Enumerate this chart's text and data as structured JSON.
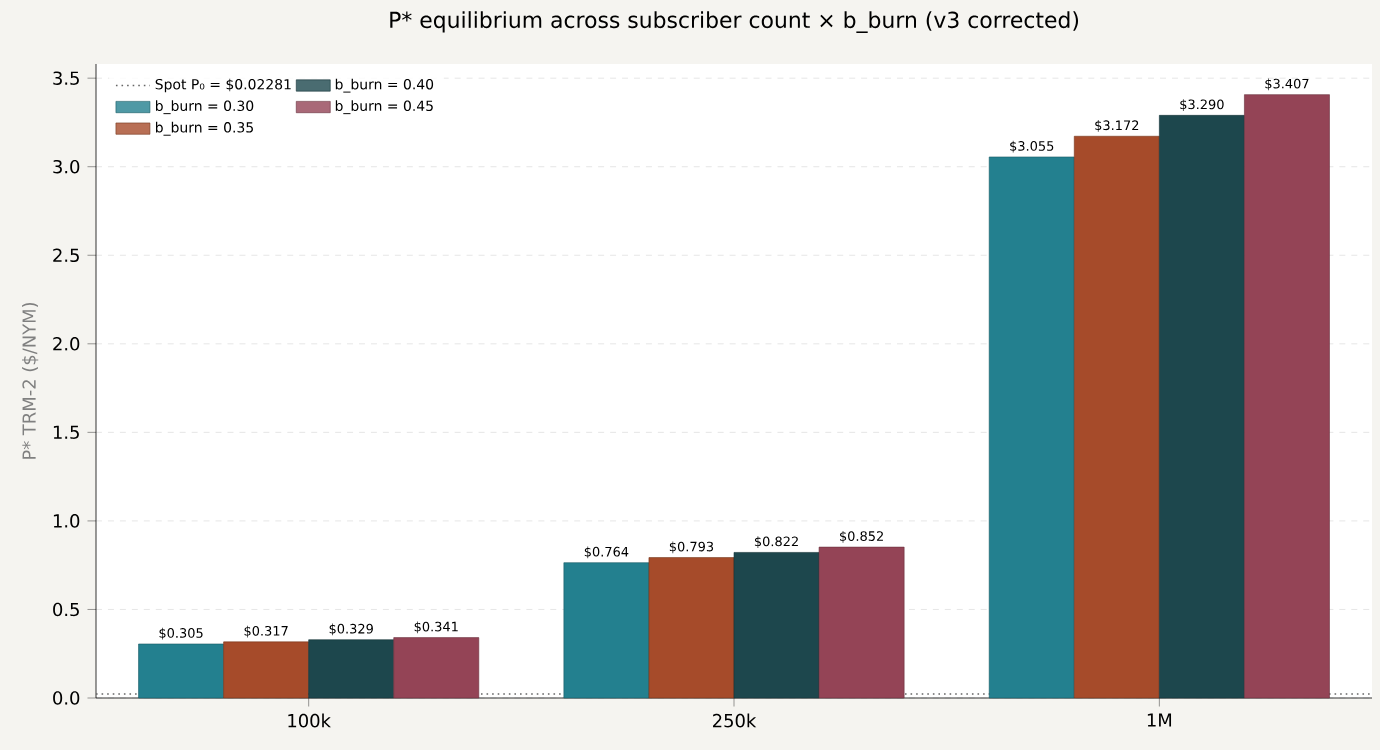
{
  "chart_data": {
    "type": "bar",
    "title": "P* equilibrium across subscriber count × b_burn (v3 corrected)",
    "ylabel": "P* TRM-2 ($/NYM)",
    "categories": [
      "100k",
      "250k",
      "1M"
    ],
    "series": [
      {
        "name": "b_burn = 0.30",
        "color": "#23808f",
        "values": [
          0.305,
          0.764,
          3.055
        ],
        "value_labels": [
          "$0.305",
          "$0.764",
          "$3.055"
        ]
      },
      {
        "name": "b_burn = 0.35",
        "color": "#a64b2a",
        "values": [
          0.317,
          0.793,
          3.172
        ],
        "value_labels": [
          "$0.317",
          "$0.793",
          "$3.172"
        ]
      },
      {
        "name": "b_burn = 0.40",
        "color": "#1d474d",
        "values": [
          0.329,
          0.822,
          3.29
        ],
        "value_labels": [
          "$0.329",
          "$0.822",
          "$3.290"
        ]
      },
      {
        "name": "b_burn = 0.45",
        "color": "#944456",
        "values": [
          0.341,
          0.852,
          3.407
        ],
        "value_labels": [
          "$0.341",
          "$0.852",
          "$3.407"
        ]
      }
    ],
    "ref_lines": [
      {
        "axis": "y",
        "value": 0.02281,
        "label": "Spot P₀ = $0.02281",
        "color": "#666666",
        "line_style": "dotted"
      }
    ],
    "ylim": [
      0,
      3.58
    ],
    "yticks": [
      {
        "value": 0,
        "label": "0.0"
      },
      0.5,
      {
        "value": 1,
        "label": "1.0"
      },
      1.5,
      {
        "value": 2,
        "label": "2.0"
      },
      2.5,
      {
        "value": 3,
        "label": "3.0"
      },
      3.5
    ],
    "grid": "y",
    "legend": "top left"
  }
}
